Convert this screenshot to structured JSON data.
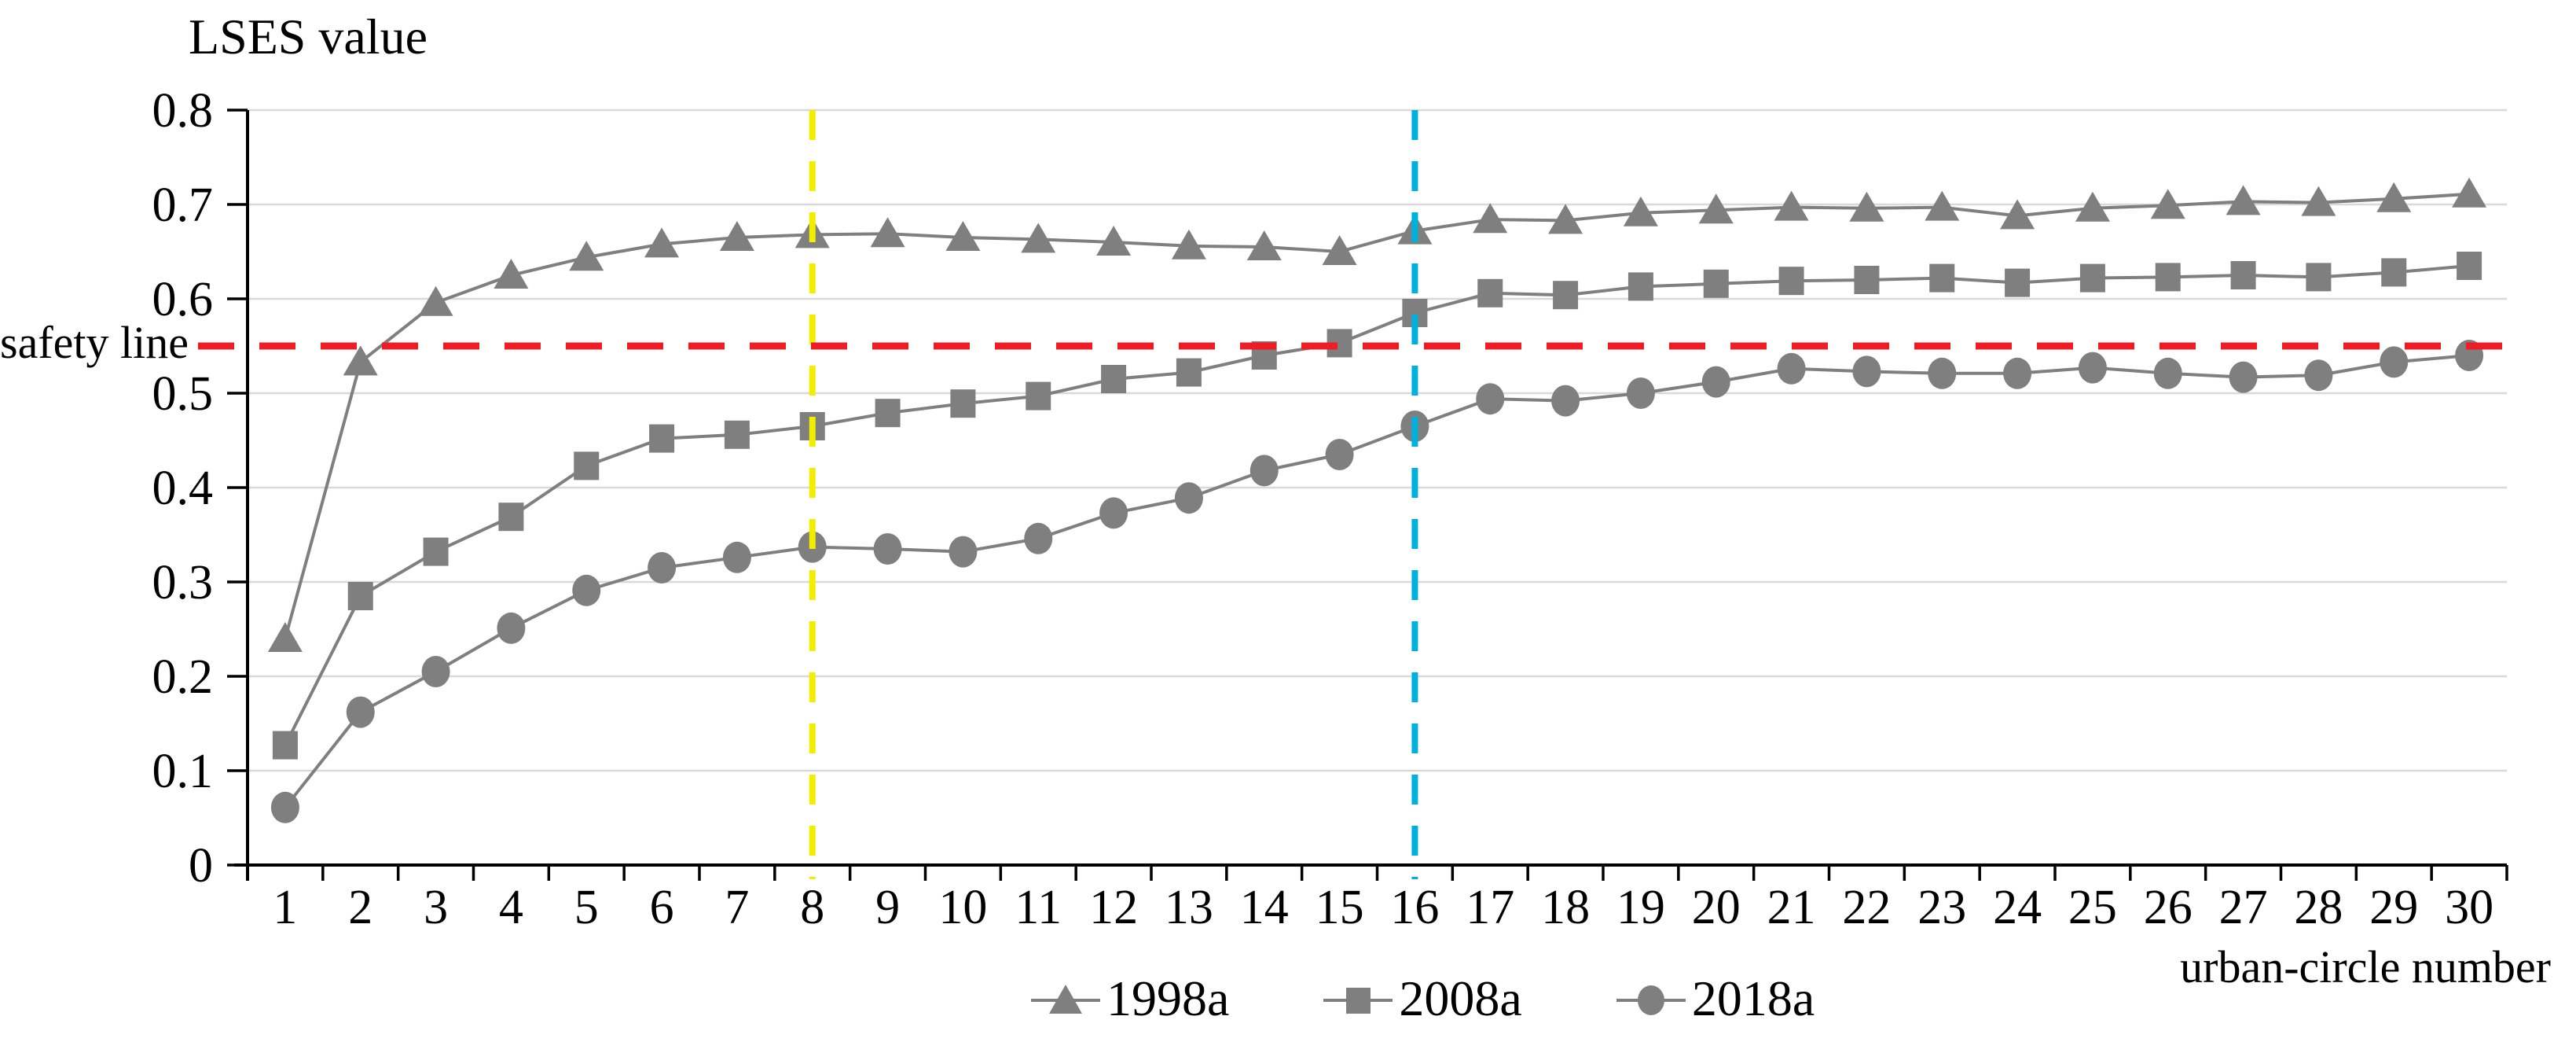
{
  "chart_data": {
    "type": "line",
    "title": "",
    "ylabel": "LSES value",
    "xlabel": "urban-circle number",
    "ylim": [
      0,
      0.8
    ],
    "y_tick_labels": [
      "0",
      "0.1",
      "0.2",
      "0.3",
      "0.4",
      "0.5",
      "0.6",
      "0.7",
      "0.8"
    ],
    "grid": "horizontal",
    "legend_position": "bottom-center",
    "categories": [
      "1",
      "2",
      "3",
      "4",
      "5",
      "6",
      "7",
      "8",
      "9",
      "10",
      "11",
      "12",
      "13",
      "14",
      "15",
      "16",
      "17",
      "18",
      "19",
      "20",
      "21",
      "22",
      "23",
      "24",
      "25",
      "26",
      "27",
      "28",
      "29",
      "30"
    ],
    "series": [
      {
        "name": "1998a",
        "marker": "triangle",
        "values": [
          0.24,
          0.533,
          0.596,
          0.625,
          0.644,
          0.658,
          0.665,
          0.668,
          0.669,
          0.665,
          0.663,
          0.66,
          0.656,
          0.655,
          0.65,
          0.672,
          0.684,
          0.683,
          0.691,
          0.694,
          0.697,
          0.696,
          0.697,
          0.688,
          0.696,
          0.699,
          0.703,
          0.702,
          0.706,
          0.711
        ]
      },
      {
        "name": "2008a",
        "marker": "square",
        "values": [
          0.127,
          0.285,
          0.332,
          0.369,
          0.423,
          0.452,
          0.456,
          0.465,
          0.479,
          0.489,
          0.497,
          0.515,
          0.522,
          0.54,
          0.553,
          0.585,
          0.606,
          0.604,
          0.613,
          0.616,
          0.619,
          0.62,
          0.622,
          0.617,
          0.622,
          0.623,
          0.625,
          0.623,
          0.628,
          0.635
        ]
      },
      {
        "name": "2018a",
        "marker": "circle",
        "values": [
          0.061,
          0.162,
          0.205,
          0.251,
          0.291,
          0.315,
          0.326,
          0.337,
          0.335,
          0.332,
          0.346,
          0.373,
          0.389,
          0.418,
          0.435,
          0.465,
          0.494,
          0.492,
          0.5,
          0.512,
          0.526,
          0.523,
          0.521,
          0.521,
          0.527,
          0.521,
          0.517,
          0.519,
          0.533,
          0.54
        ]
      }
    ],
    "annotations": {
      "safety_line": {
        "label": "safety line",
        "value": 0.55,
        "color": "#ee1c25"
      },
      "vertical_lines": [
        {
          "x": 8,
          "color": "#f2ee00"
        },
        {
          "x": 16,
          "color": "#00b0dd"
        }
      ]
    },
    "colors": {
      "series": "#7f7f7f",
      "gridline": "#d9d9d9",
      "axis": "#000000"
    }
  }
}
